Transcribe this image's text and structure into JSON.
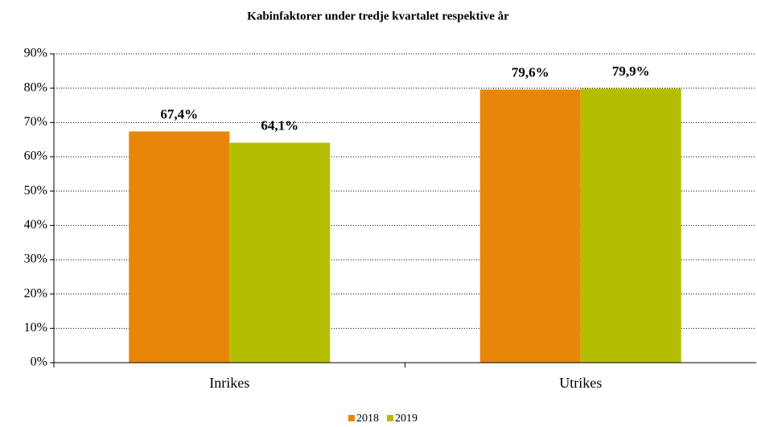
{
  "chart_data": {
    "type": "bar",
    "title": "Kabinfaktorer under tredje kvartalet respektive år",
    "categories": [
      "Inrikes",
      "Utrikes"
    ],
    "series": [
      {
        "name": "2018",
        "color": "#e8860a",
        "values": [
          67.4,
          79.6
        ],
        "value_labels": [
          "67,4%",
          "79,6%"
        ]
      },
      {
        "name": "2019",
        "color": "#b5bd00",
        "values": [
          64.1,
          79.9
        ],
        "value_labels": [
          "64,1%",
          "79,9%"
        ]
      }
    ],
    "ylim": [
      0,
      90
    ],
    "yticks": [
      {
        "value": 0,
        "label": "0%"
      },
      {
        "value": 10,
        "label": "10%"
      },
      {
        "value": 20,
        "label": "20%"
      },
      {
        "value": 30,
        "label": "30%"
      },
      {
        "value": 40,
        "label": "40%"
      },
      {
        "value": 50,
        "label": "50%"
      },
      {
        "value": 60,
        "label": "60%"
      },
      {
        "value": 70,
        "label": "70%"
      },
      {
        "value": 80,
        "label": "80%"
      },
      {
        "value": 90,
        "label": "90%"
      }
    ],
    "grid": true,
    "legend": "bottom"
  }
}
